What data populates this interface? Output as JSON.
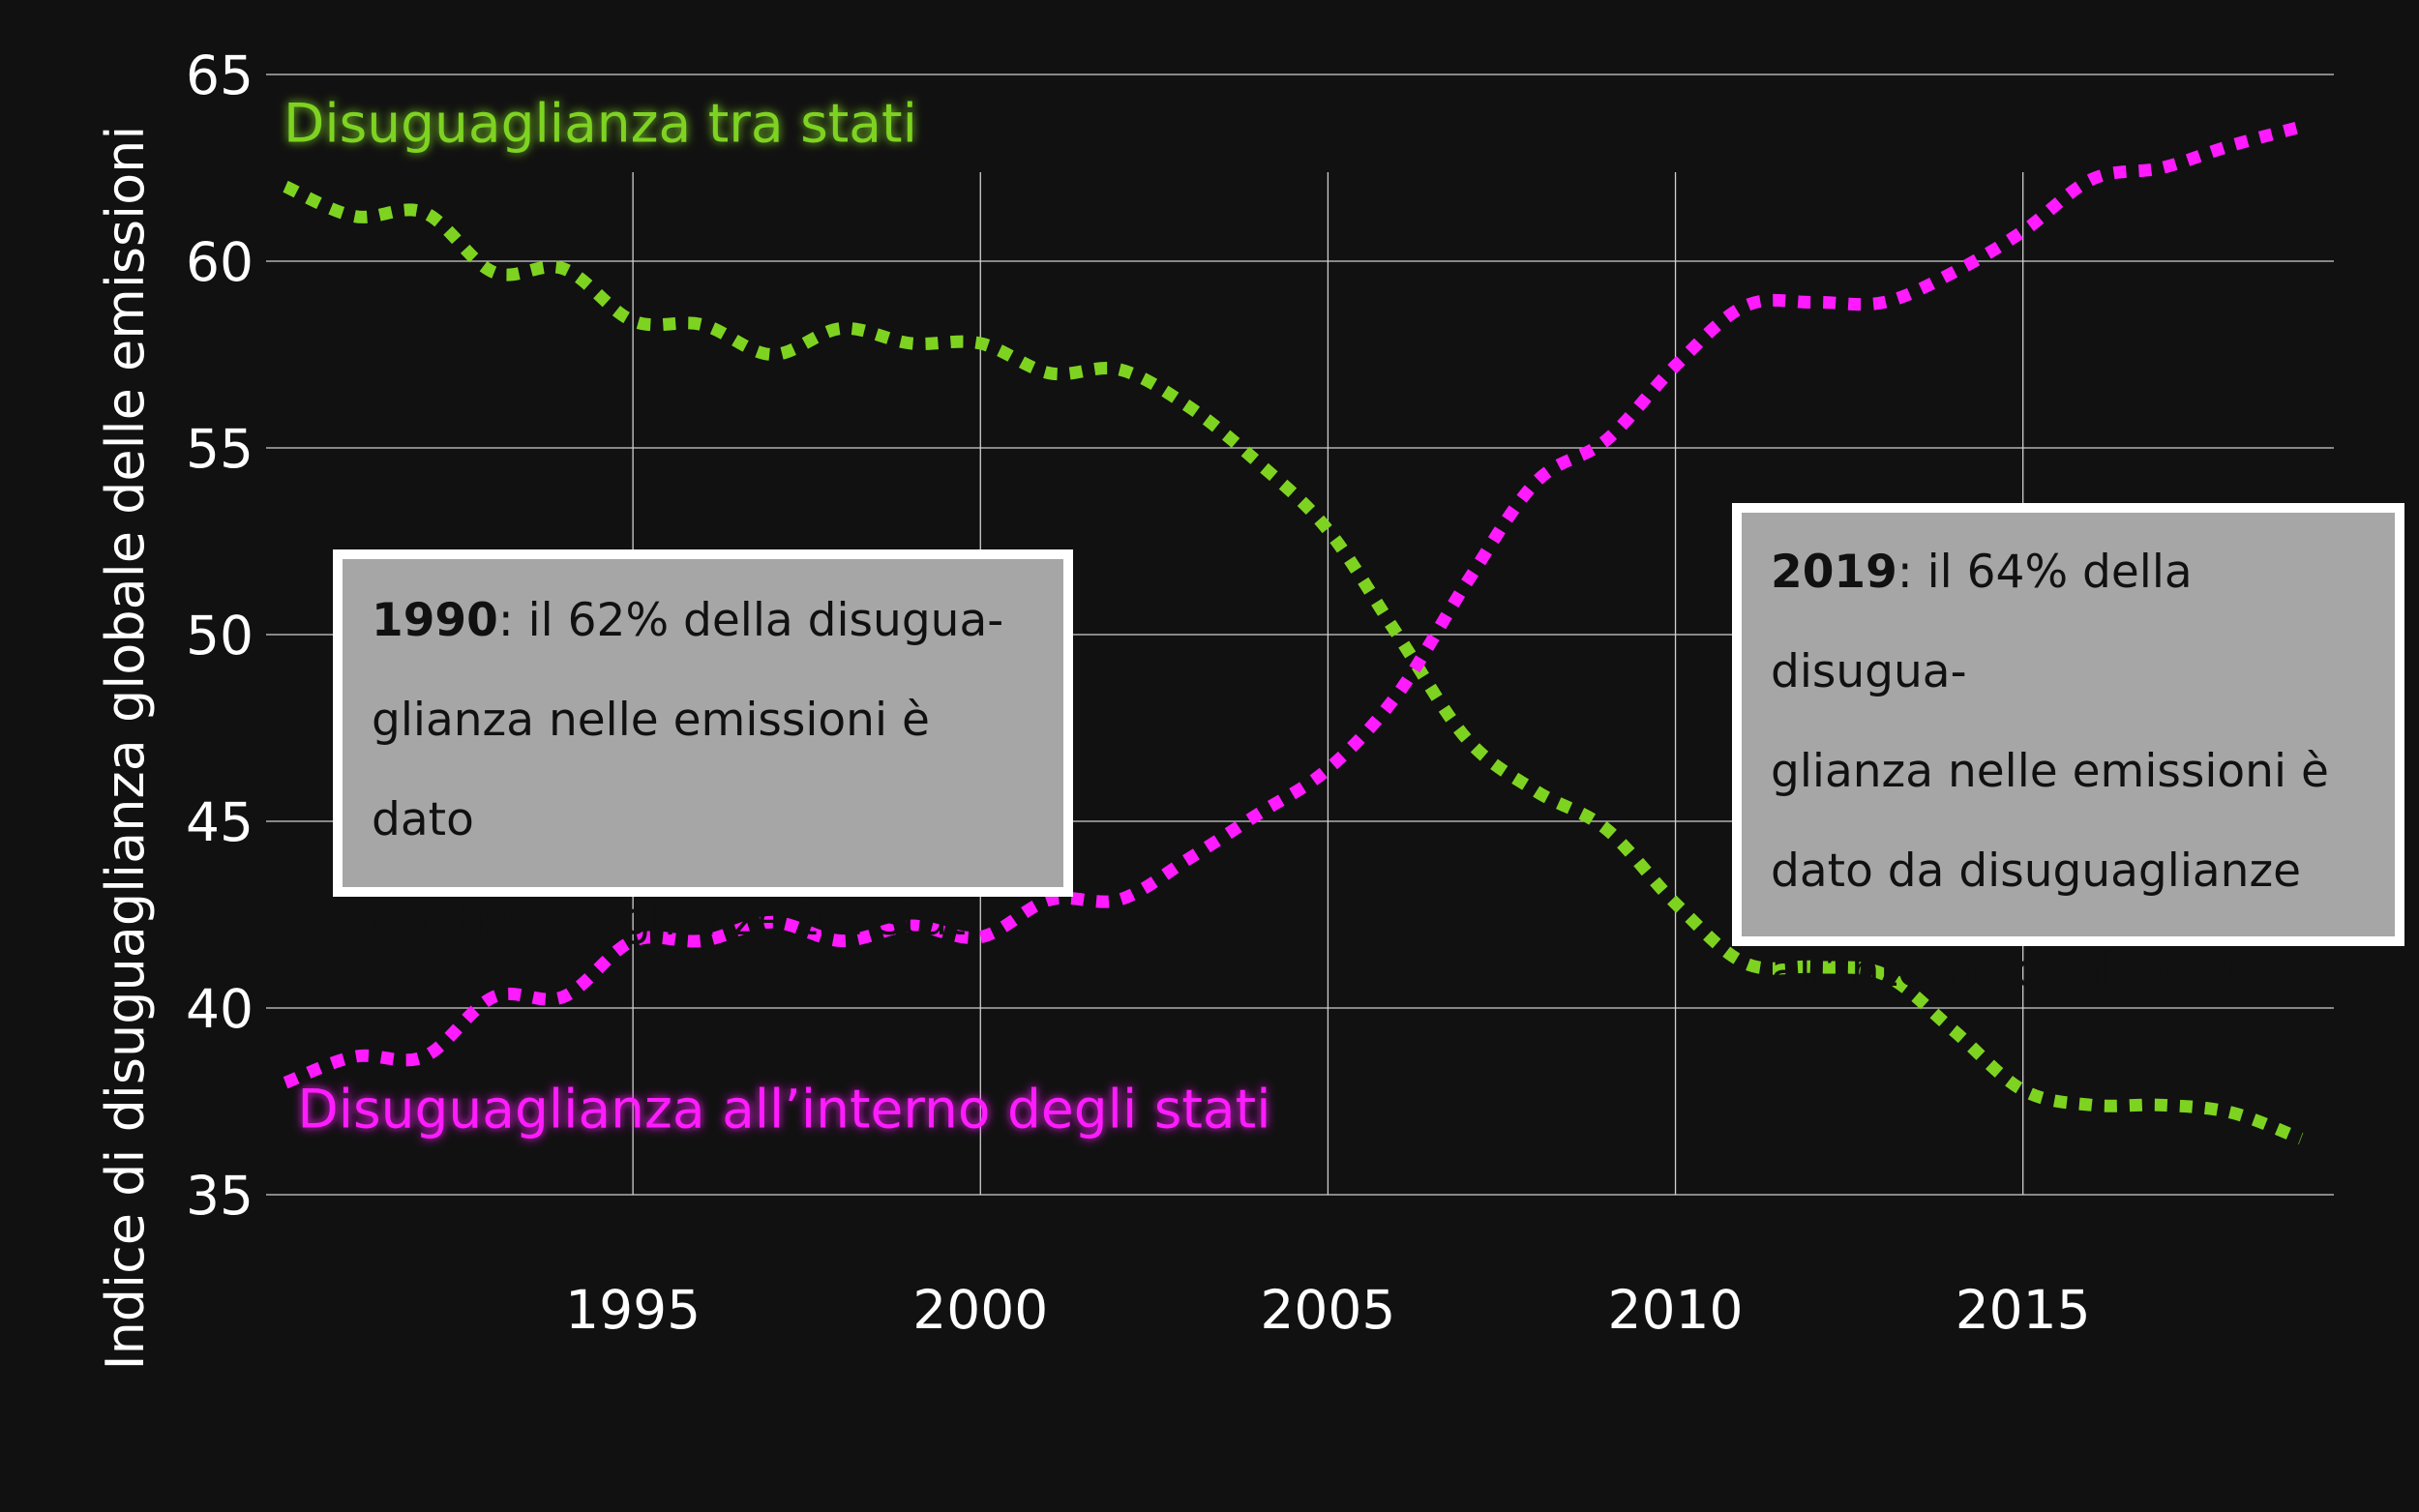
{
  "chart_data": {
    "type": "line",
    "title": "",
    "xlabel": "",
    "ylabel": "Indice di disuguaglianza globale delle emissioni",
    "xlim": [
      1990,
      2019
    ],
    "ylim": [
      34,
      68
    ],
    "xticks": [
      "1995",
      "2000",
      "2005",
      "2010",
      "2015"
    ],
    "yticks": [
      "65",
      "60",
      "55",
      "50",
      "45",
      "40",
      "35"
    ],
    "grid": true,
    "legend": "none",
    "x": [
      1990,
      1991,
      1992,
      1993,
      1994,
      1995,
      1996,
      1997,
      1998,
      1999,
      2000,
      2001,
      2002,
      2003,
      2004,
      2005,
      2006,
      2007,
      2008,
      2009,
      2010,
      2011,
      2012,
      2013,
      2014,
      2015,
      2016,
      2017,
      2018,
      2019
    ],
    "series": [
      {
        "name": "Disuguaglianza tra stati",
        "color": "#7ed321",
        "values": [
          62.0,
          61.2,
          61.3,
          59.7,
          59.8,
          58.4,
          58.3,
          57.5,
          58.2,
          57.8,
          57.8,
          57.0,
          57.1,
          56.1,
          54.6,
          52.8,
          50.0,
          47.2,
          45.8,
          44.8,
          42.8,
          41.2,
          41.1,
          40.9,
          39.4,
          37.8,
          37.4,
          37.4,
          37.2,
          36.5
        ],
        "label_anchor": {
          "x": 1990.0,
          "y": 63.2
        }
      },
      {
        "name": "Disuguaglianza all’interno degli stati",
        "color": "#ff1aff",
        "values": [
          38.0,
          38.7,
          38.7,
          40.3,
          40.3,
          41.8,
          41.8,
          42.3,
          41.8,
          42.2,
          41.9,
          42.9,
          42.9,
          44.0,
          45.2,
          46.4,
          48.4,
          51.4,
          54.1,
          55.2,
          57.2,
          58.8,
          58.9,
          58.9,
          59.7,
          60.8,
          62.2,
          62.5,
          63.1,
          63.6
        ],
        "label_anchor": {
          "x": 1990.2,
          "y": 36.8
        }
      }
    ],
    "annotations": [
      {
        "id": "1990",
        "bold": "1990",
        "lines": [
          ": il 62% della disugua-",
          "glianza nelle emissioni è dato",
          "da disuguaglianze tra stati"
        ]
      },
      {
        "id": "2019",
        "bold": "2019",
        "lines": [
          ": il 64% della disugua-",
          "glianza nelle emissioni è",
          "dato da disuguaglianze",
          "all’interno degli stati"
        ]
      }
    ]
  }
}
